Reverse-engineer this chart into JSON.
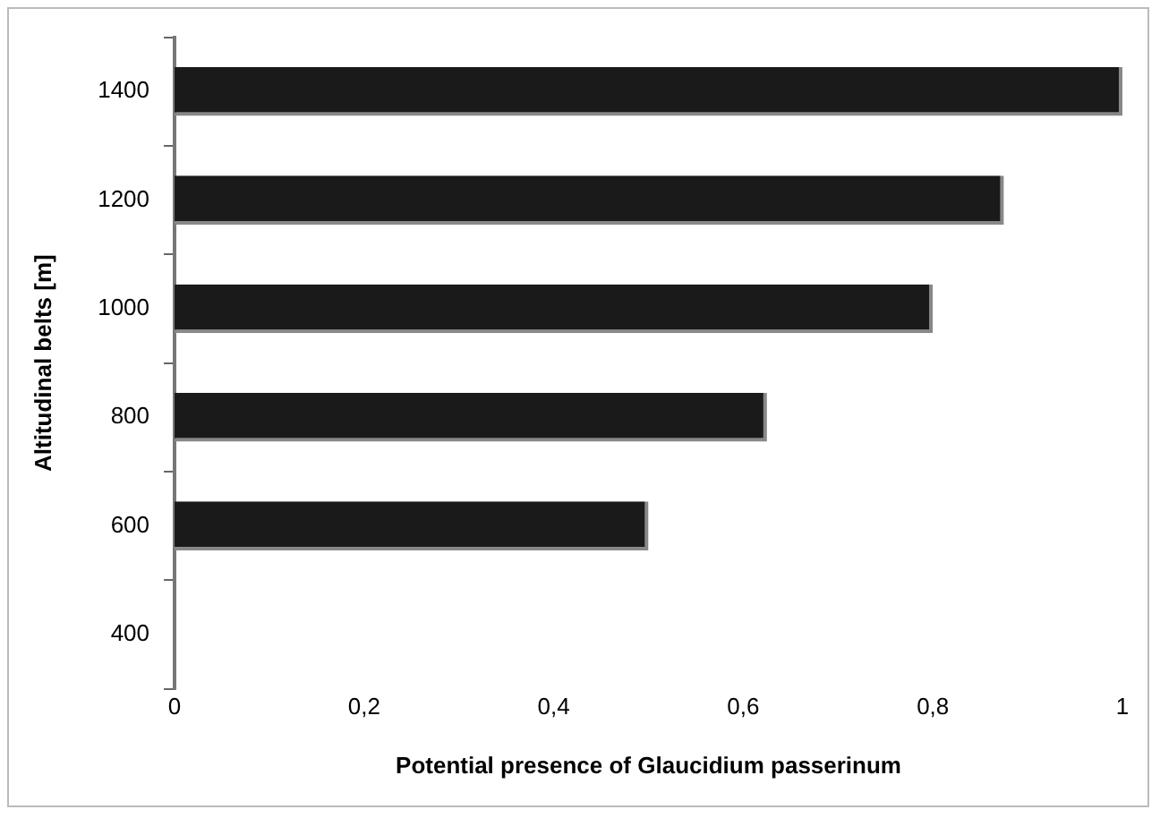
{
  "chart_data": {
    "type": "bar",
    "orientation": "horizontal",
    "xlabel": "Potential presence of Glaucidium passerinum",
    "ylabel": "Altitudinal belts [m]",
    "categories": [
      "1400",
      "1200",
      "1000",
      "800",
      "600",
      "400"
    ],
    "values": [
      1.0,
      0.875,
      0.8,
      0.625,
      0.5,
      0
    ],
    "color": "#1a1a1a",
    "xlim": [
      0,
      1
    ],
    "xticks": [
      0,
      {
        "value": 0.2,
        "label": "0,2"
      },
      {
        "value": 0.4,
        "label": "0,4"
      },
      {
        "value": 0.6,
        "label": "0,6"
      },
      {
        "value": 0.8,
        "label": "0,8"
      },
      1
    ],
    "grid": false,
    "legend": false
  }
}
